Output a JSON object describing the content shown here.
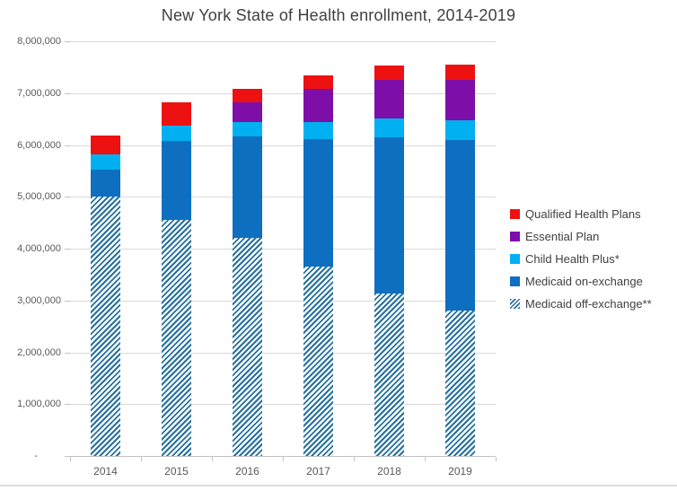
{
  "chart_data": {
    "type": "bar",
    "stacked": true,
    "title": "New York State of Health enrollment, 2014-2019",
    "categories": [
      "2014",
      "2015",
      "2016",
      "2017",
      "2018",
      "2019"
    ],
    "series": [
      {
        "name": "Qualified Health Plans",
        "color": "#ee1111",
        "pattern": "solid",
        "values": [
          360000,
          440000,
          270000,
          270000,
          280000,
          300000
        ]
      },
      {
        "name": "Essential Plan",
        "color": "#7d0fa8",
        "pattern": "solid",
        "values": [
          0,
          0,
          380000,
          640000,
          740000,
          770000
        ]
      },
      {
        "name": "Child Health Plus*",
        "color": "#00b0f0",
        "pattern": "solid",
        "values": [
          300000,
          300000,
          280000,
          330000,
          370000,
          380000
        ]
      },
      {
        "name": "Medicaid on-exchange",
        "color": "#0e6fc1",
        "pattern": "solid",
        "values": [
          520000,
          1520000,
          1960000,
          2450000,
          3010000,
          3300000
        ]
      },
      {
        "name": "Medicaid off-exchange**",
        "color": "#26719e",
        "pattern": "diagonal-hatch",
        "values": [
          5000000,
          4560000,
          4200000,
          3660000,
          3130000,
          2800000
        ]
      }
    ],
    "xlabel": "",
    "ylabel": "",
    "ylim": [
      0,
      8000000
    ],
    "ytick_interval": 1000000,
    "ytick_labels_top_down": [
      "8,000,000",
      "7,000,000",
      "6,000,000",
      "5,000,000",
      "4,000,000",
      "3,000,000",
      "2,000,000",
      "1,000,000",
      "-"
    ],
    "grid": true,
    "legend_position": "right",
    "style": {
      "grid_color": "#d9d9d9",
      "axis_color": "#c3c3c3",
      "tick_text_color": "#595959",
      "title_color": "#404040",
      "legend_text_color": "#404040",
      "background": "#ffffff"
    }
  }
}
